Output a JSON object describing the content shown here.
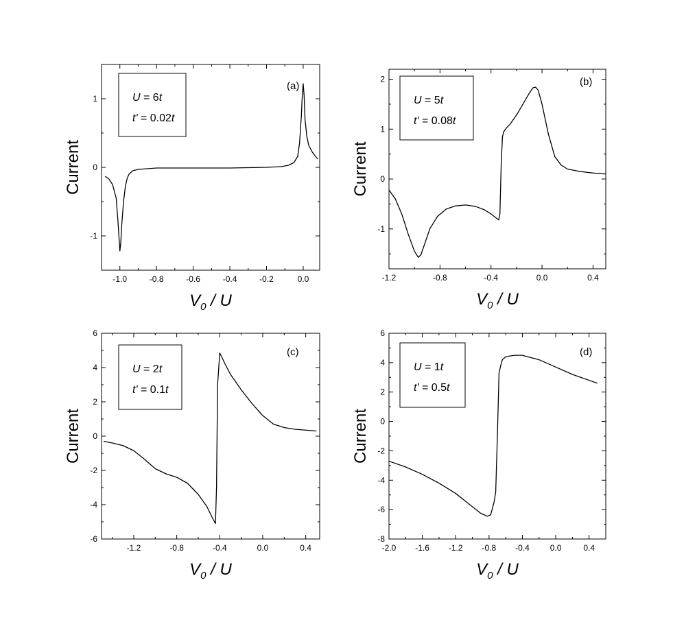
{
  "chart_data": [
    {
      "id": "a",
      "type": "line",
      "panel_label": "(a)",
      "xlabel": "V",
      "xlabel_sub": "0",
      "xlabel_rest": " / U",
      "ylabel": "Current",
      "xlim": [
        -1.1,
        0.09
      ],
      "ylim": [
        -1.5,
        1.5
      ],
      "xticks": [
        -1.0,
        -0.8,
        -0.6,
        -0.4,
        -0.2,
        0.0
      ],
      "xticklabels": [
        "-1.0",
        "-0.8",
        "-0.6",
        "-0.4",
        "-0.2",
        "0.0"
      ],
      "yticks": [
        -1,
        0,
        1
      ],
      "yticklabels": [
        "-1",
        "0",
        "1"
      ],
      "legend": {
        "line1_var": "U",
        "line1_eq": " = 6",
        "line1_unit": "t",
        "line2_var": "t'",
        "line2_eq": " = 0.02",
        "line2_unit": "t"
      },
      "series": [
        {
          "x": [
            -1.08,
            -1.06,
            -1.04,
            -1.02,
            -1.01,
            -1.0,
            -0.995,
            -0.99,
            -0.98,
            -0.97,
            -0.96,
            -0.95,
            -0.93,
            -0.9,
            -0.85,
            -0.8,
            -0.6,
            -0.4,
            -0.2,
            -0.12,
            -0.08,
            -0.05,
            -0.03,
            -0.02,
            -0.01,
            -0.005,
            0.0,
            0.005,
            0.01,
            0.02,
            0.03,
            0.05,
            0.07,
            0.08
          ],
          "y": [
            -0.13,
            -0.17,
            -0.25,
            -0.45,
            -0.8,
            -1.22,
            -1.1,
            -0.85,
            -0.5,
            -0.28,
            -0.16,
            -0.1,
            -0.05,
            -0.03,
            -0.02,
            -0.01,
            -0.01,
            -0.01,
            0.0,
            0.01,
            0.03,
            0.07,
            0.16,
            0.35,
            0.75,
            1.05,
            1.22,
            1.05,
            0.7,
            0.45,
            0.32,
            0.22,
            0.15,
            0.12
          ]
        }
      ]
    },
    {
      "id": "b",
      "type": "line",
      "panel_label": "(b)",
      "xlabel": "V",
      "xlabel_sub": "0",
      "xlabel_rest": " / U",
      "ylabel": "Current",
      "xlim": [
        -1.2,
        0.5
      ],
      "ylim": [
        -1.8,
        2.2
      ],
      "xticks": [
        -1.2,
        -0.8,
        -0.4,
        0.0,
        0.4
      ],
      "xticklabels": [
        "-1.2",
        "-0.8",
        "-0.4",
        "0.0",
        "0.4"
      ],
      "yticks": [
        -1,
        0,
        1,
        2
      ],
      "yticklabels": [
        "-1",
        "0",
        "1",
        "2"
      ],
      "legend": {
        "line1_var": "U",
        "line1_eq": " = 5",
        "line1_unit": "t",
        "line2_var": "t'",
        "line2_eq": " = 0.08",
        "line2_unit": "t"
      },
      "series": [
        {
          "x": [
            -1.2,
            -1.15,
            -1.1,
            -1.05,
            -1.0,
            -0.97,
            -0.95,
            -0.92,
            -0.88,
            -0.82,
            -0.75,
            -0.68,
            -0.6,
            -0.52,
            -0.45,
            -0.4,
            -0.36,
            -0.34,
            -0.33,
            -0.32,
            -0.31,
            -0.3,
            -0.28,
            -0.25,
            -0.2,
            -0.15,
            -0.1,
            -0.07,
            -0.05,
            -0.03,
            0.0,
            0.05,
            0.1,
            0.15,
            0.2,
            0.3,
            0.4,
            0.5
          ],
          "y": [
            -0.22,
            -0.4,
            -0.7,
            -1.1,
            -1.45,
            -1.57,
            -1.52,
            -1.3,
            -1.0,
            -0.75,
            -0.6,
            -0.54,
            -0.52,
            -0.55,
            -0.62,
            -0.7,
            -0.78,
            -0.82,
            -0.7,
            0.3,
            0.85,
            0.95,
            1.02,
            1.1,
            1.28,
            1.5,
            1.72,
            1.83,
            1.84,
            1.78,
            1.5,
            0.9,
            0.45,
            0.28,
            0.2,
            0.15,
            0.12,
            0.1
          ]
        }
      ]
    },
    {
      "id": "c",
      "type": "line",
      "panel_label": "(c)",
      "xlabel": "V",
      "xlabel_sub": "0",
      "xlabel_rest": " / U",
      "ylabel": "Current",
      "xlim": [
        -1.5,
        0.53
      ],
      "ylim": [
        -6,
        6
      ],
      "xticks": [
        -1.2,
        -0.8,
        -0.4,
        0.0,
        0.4
      ],
      "xticklabels": [
        "-1.2",
        "-0.8",
        "-0.4",
        "0.0",
        "0.4"
      ],
      "yticks": [
        -6,
        -4,
        -2,
        0,
        2,
        4,
        6
      ],
      "yticklabels": [
        "-6",
        "-4",
        "-2",
        "0",
        "2",
        "4",
        "6"
      ],
      "legend": {
        "line1_var": "U",
        "line1_eq": " = 2",
        "line1_unit": "t",
        "line2_var": "t'",
        "line2_eq": " = 0.1",
        "line2_unit": "t"
      },
      "series": [
        {
          "x": [
            -1.48,
            -1.4,
            -1.3,
            -1.2,
            -1.1,
            -1.0,
            -0.9,
            -0.8,
            -0.7,
            -0.6,
            -0.52,
            -0.47,
            -0.44,
            -0.43,
            -0.42,
            -0.4,
            -0.38,
            -0.35,
            -0.3,
            -0.2,
            -0.1,
            0.0,
            0.1,
            0.2,
            0.3,
            0.5
          ],
          "y": [
            -0.3,
            -0.4,
            -0.55,
            -0.85,
            -1.35,
            -1.9,
            -2.2,
            -2.4,
            -2.75,
            -3.4,
            -4.1,
            -4.75,
            -5.1,
            -3.0,
            3.0,
            4.85,
            4.6,
            4.2,
            3.6,
            2.7,
            1.9,
            1.2,
            0.7,
            0.5,
            0.4,
            0.3
          ]
        }
      ]
    },
    {
      "id": "d",
      "type": "line",
      "panel_label": "(d)",
      "xlabel": "V",
      "xlabel_sub": "0",
      "xlabel_rest": " / U",
      "ylabel": "Current",
      "xlim": [
        -2.0,
        0.6
      ],
      "ylim": [
        -8,
        6
      ],
      "xticks": [
        -2.0,
        -1.6,
        -1.2,
        -0.8,
        -0.4,
        0.0,
        0.4
      ],
      "xticklabels": [
        "-2.0",
        "-1.6",
        "-1.2",
        "-0.8",
        "-0.4",
        "0.0",
        "0.4"
      ],
      "yticks": [
        -8,
        -6,
        -4,
        -2,
        0,
        2,
        4,
        6
      ],
      "yticklabels": [
        "-8",
        "-6",
        "-4",
        "-2",
        "0",
        "2",
        "4",
        "6"
      ],
      "legend": {
        "line1_var": "U",
        "line1_eq": " = 1",
        "line1_unit": "t",
        "line2_var": "t'",
        "line2_eq": " = 0.5",
        "line2_unit": "t"
      },
      "series": [
        {
          "x": [
            -2.0,
            -1.8,
            -1.6,
            -1.4,
            -1.2,
            -1.0,
            -0.9,
            -0.82,
            -0.78,
            -0.74,
            -0.72,
            -0.7,
            -0.68,
            -0.66,
            -0.64,
            -0.6,
            -0.5,
            -0.4,
            -0.2,
            0.0,
            0.2,
            0.4,
            0.5
          ],
          "y": [
            -2.7,
            -3.1,
            -3.6,
            -4.2,
            -4.9,
            -5.8,
            -6.25,
            -6.45,
            -6.35,
            -5.5,
            -4.8,
            -1.0,
            3.3,
            3.8,
            4.2,
            4.4,
            4.5,
            4.5,
            4.2,
            3.7,
            3.2,
            2.8,
            2.6
          ]
        }
      ]
    }
  ]
}
